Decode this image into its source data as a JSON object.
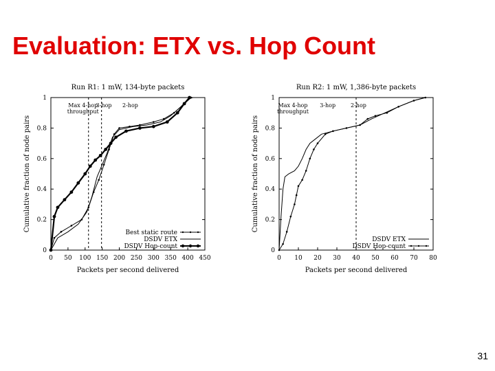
{
  "slide": {
    "title": "Evaluation: ETX vs. Hop Count",
    "page_number": "31"
  },
  "chart_data": [
    {
      "type": "line",
      "title": "Run R1: 1 mW, 134-byte packets",
      "xlabel": "Packets per second delivered",
      "ylabel": "Cumulative fraction of node pairs",
      "xlim": [
        0,
        450
      ],
      "ylim": [
        0,
        1
      ],
      "x_ticks": [
        "0",
        "50",
        "100",
        "150",
        "200",
        "250",
        "300",
        "350",
        "400",
        "450"
      ],
      "x_tick_values": [
        0,
        50,
        100,
        150,
        200,
        250,
        300,
        350,
        400,
        450
      ],
      "y_ticks": [
        "0",
        "0.2",
        "0.4",
        "0.6",
        "0.8",
        "1"
      ],
      "y_tick_values": [
        0,
        0.2,
        0.4,
        0.6,
        0.8,
        1
      ],
      "grid": false,
      "legend_position": "bottom-right",
      "annotations": [
        {
          "lines": [
            "Max 4-hop",
            "throughput"
          ],
          "x": 110
        },
        {
          "lines": [
            "3-hop"
          ],
          "x": 148
        },
        {
          "lines": [
            "2-hop"
          ],
          "x": 225
        }
      ],
      "reference_lines_x": [
        110,
        148
      ],
      "series": [
        {
          "name": "Best static route",
          "marker": "dot-small",
          "x": [
            0,
            10,
            30,
            60,
            90,
            110,
            125,
            140,
            155,
            170,
            185,
            200,
            230,
            260,
            300,
            330,
            360,
            390,
            410
          ],
          "y": [
            0,
            0.08,
            0.12,
            0.16,
            0.2,
            0.28,
            0.38,
            0.46,
            0.56,
            0.66,
            0.76,
            0.8,
            0.81,
            0.82,
            0.84,
            0.86,
            0.9,
            0.96,
            1
          ]
        },
        {
          "name": "DSDV ETX",
          "marker": "none",
          "x": [
            0,
            20,
            50,
            80,
            105,
            120,
            135,
            150,
            165,
            180,
            200,
            240,
            280,
            320,
            350,
            380,
            400,
            415
          ],
          "y": [
            0,
            0.08,
            0.12,
            0.17,
            0.25,
            0.35,
            0.48,
            0.56,
            0.64,
            0.74,
            0.79,
            0.81,
            0.82,
            0.84,
            0.88,
            0.94,
            0.99,
            1
          ]
        },
        {
          "name": "DSDV Hop-count",
          "marker": "dot-large",
          "x": [
            0,
            10,
            20,
            40,
            60,
            80,
            100,
            115,
            130,
            145,
            160,
            175,
            190,
            220,
            260,
            300,
            340,
            370,
            390,
            405
          ],
          "y": [
            0,
            0.22,
            0.28,
            0.33,
            0.38,
            0.44,
            0.5,
            0.55,
            0.59,
            0.62,
            0.66,
            0.7,
            0.74,
            0.78,
            0.8,
            0.81,
            0.84,
            0.9,
            0.96,
            1
          ]
        }
      ]
    },
    {
      "type": "line",
      "title": "Run R2: 1 mW, 1,386-byte packets",
      "xlabel": "Packets per second delivered",
      "ylabel": "Cumulative fraction of node pairs",
      "xlim": [
        0,
        80
      ],
      "ylim": [
        0,
        1
      ],
      "x_ticks": [
        "0",
        "10",
        "20",
        "30",
        "40",
        "50",
        "60",
        "70",
        "80"
      ],
      "x_tick_values": [
        0,
        10,
        20,
        30,
        40,
        50,
        60,
        70,
        80
      ],
      "y_ticks": [
        "0",
        "0.2",
        "0.4",
        "0.6",
        "0.8",
        "1"
      ],
      "y_tick_values": [
        0,
        0.2,
        0.4,
        0.6,
        0.8,
        1
      ],
      "grid": false,
      "legend_position": "bottom-right",
      "annotations": [
        {
          "lines": [
            "Max 4-hop",
            "throughput"
          ],
          "x": 10
        },
        {
          "lines": [
            "3-hop"
          ],
          "x": 24
        },
        {
          "lines": [
            "2-hop"
          ],
          "x": 40
        }
      ],
      "reference_lines_x": [
        40
      ],
      "series": [
        {
          "name": "DSDV ETX",
          "marker": "none",
          "x": [
            0,
            1,
            2,
            3,
            5,
            8,
            10,
            12,
            14,
            16,
            18,
            22,
            28,
            35,
            42,
            48,
            55,
            62,
            70,
            76
          ],
          "y": [
            0,
            0.22,
            0.4,
            0.48,
            0.5,
            0.52,
            0.55,
            0.6,
            0.66,
            0.7,
            0.72,
            0.76,
            0.78,
            0.8,
            0.82,
            0.86,
            0.9,
            0.94,
            0.98,
            1
          ]
        },
        {
          "name": "DSDV Hop-count",
          "marker": "dot-small",
          "x": [
            0,
            2,
            4,
            6,
            8,
            9,
            10,
            12,
            14,
            16,
            18,
            20,
            24,
            28,
            35,
            42,
            46,
            50,
            56,
            62,
            70,
            76
          ],
          "y": [
            0,
            0.04,
            0.12,
            0.22,
            0.3,
            0.36,
            0.42,
            0.46,
            0.52,
            0.6,
            0.66,
            0.7,
            0.76,
            0.78,
            0.8,
            0.82,
            0.86,
            0.88,
            0.9,
            0.94,
            0.98,
            1
          ]
        }
      ]
    }
  ]
}
